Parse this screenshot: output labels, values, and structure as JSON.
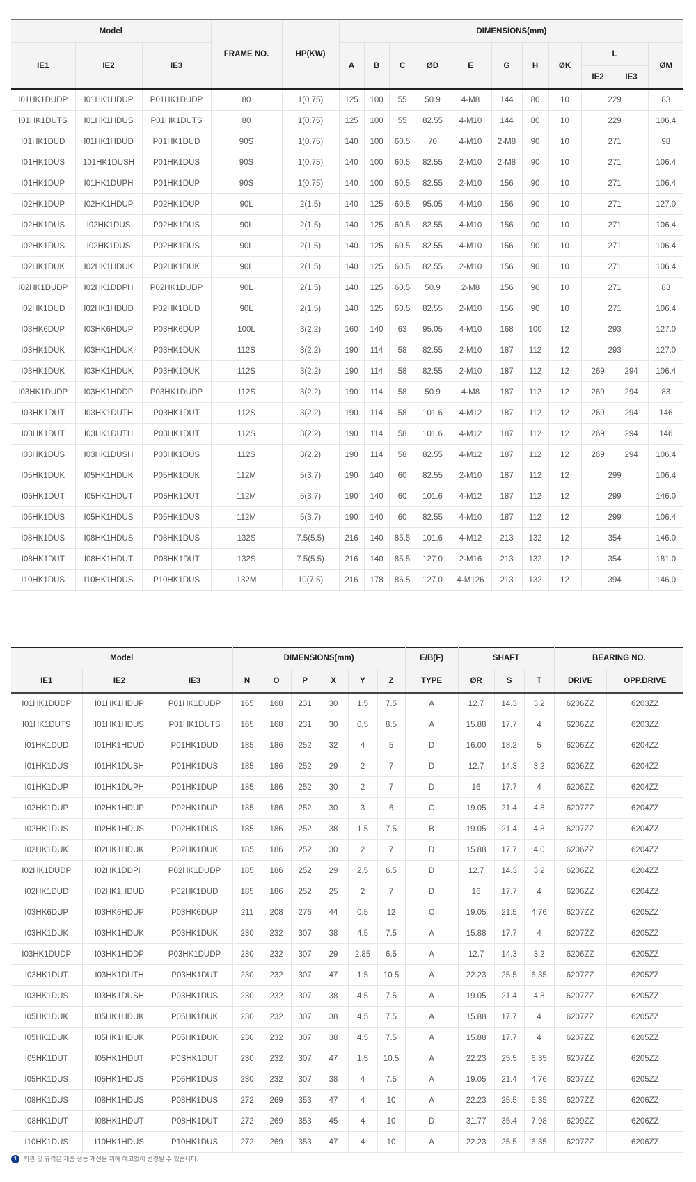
{
  "table1": {
    "headers": {
      "model": "Model",
      "ie1": "IE1",
      "ie2": "IE2",
      "ie3": "IE3",
      "frame": "FRAME NO.",
      "hp": "HP(KW)",
      "dimensions": "DIMENSIONS(mm)",
      "a": "A",
      "b": "B",
      "c": "C",
      "d": "ØD",
      "e": "E",
      "g": "G",
      "h": "H",
      "k": "ØK",
      "l": "L",
      "l_ie2": "IE2",
      "l_ie3": "IE3",
      "m": "ØM"
    },
    "rows": [
      [
        "I01HK1DUDP",
        "I01HK1HDUP",
        "P01HK1DUDP",
        "80",
        "1(0.75)",
        "125",
        "100",
        "55",
        "50.9",
        "4-M8",
        "144",
        "80",
        "10",
        "229",
        "83"
      ],
      [
        "I01HK1DUTS",
        "I01HK1HDUS",
        "P01HK1DUTS",
        "80",
        "1(0.75)",
        "125",
        "100",
        "55",
        "82.55",
        "4-M10",
        "144",
        "80",
        "10",
        "229",
        "106.4"
      ],
      [
        "I01HK1DUD",
        "I01HK1HDUD",
        "P01HK1DUD",
        "90S",
        "1(0.75)",
        "140",
        "100",
        "60.5",
        "70",
        "4-M10",
        "2-M8",
        "90",
        "10",
        "271",
        "98"
      ],
      [
        "I01HK1DUS",
        "101HK1DUSH",
        "P01HK1DUS",
        "90S",
        "1(0.75)",
        "140",
        "100",
        "60.5",
        "82.55",
        "2-M10",
        "2-M8",
        "90",
        "10",
        "271",
        "106.4"
      ],
      [
        "I01HK1DUP",
        "I01HK1DUPH",
        "P01HK1DUP",
        "90S",
        "1(0.75)",
        "140",
        "100",
        "60.5",
        "82.55",
        "2-M10",
        "156",
        "90",
        "10",
        "271",
        "106.4"
      ],
      [
        "I02HK1DUP",
        "I02HK1HDUP",
        "P02HK1DUP",
        "90L",
        "2(1.5)",
        "140",
        "125",
        "60.5",
        "95.05",
        "4-M10",
        "156",
        "90",
        "10",
        "271",
        "127.0"
      ],
      [
        "I02HK1DUS",
        "I02HK1DUS",
        "P02HK1DUS",
        "90L",
        "2(1.5)",
        "140",
        "125",
        "60.5",
        "82.55",
        "4-M10",
        "156",
        "90",
        "10",
        "271",
        "106.4"
      ],
      [
        "I02HK1DUS",
        "I02HK1DUS",
        "P02HK1DUS",
        "90L",
        "2(1.5)",
        "140",
        "125",
        "60.5",
        "82.55",
        "4-M10",
        "156",
        "90",
        "10",
        "271",
        "106.4"
      ],
      [
        "I02HK1DUK",
        "I02HK1HDUK",
        "P02HK1DUK",
        "90L",
        "2(1.5)",
        "140",
        "125",
        "60.5",
        "82.55",
        "2-M10",
        "156",
        "90",
        "10",
        "271",
        "106.4"
      ],
      [
        "I02HK1DUDP",
        "I02HK1DDPH",
        "P02HK1DUDP",
        "90L",
        "2(1.5)",
        "140",
        "125",
        "60.5",
        "50.9",
        "2-M8",
        "156",
        "90",
        "10",
        "271",
        "83"
      ],
      [
        "I02HK1DUD",
        "I02HK1HDUD",
        "P02HK1DUD",
        "90L",
        "2(1.5)",
        "140",
        "125",
        "60.5",
        "82.55",
        "2-M10",
        "156",
        "90",
        "10",
        "271",
        "106.4"
      ],
      [
        "I03HK6DUP",
        "I03HK6HDUP",
        "P03HK6DUP",
        "100L",
        "3(2.2)",
        "160",
        "140",
        "63",
        "95.05",
        "4-M10",
        "168",
        "100",
        "12",
        "293",
        "127.0"
      ],
      [
        "I03HK1DUK",
        "I03HK1HDUK",
        "P03HK1DUK",
        "112S",
        "3(2.2)",
        "190",
        "114",
        "58",
        "82.55",
        "2-M10",
        "187",
        "112",
        "12",
        "293",
        "127.0"
      ],
      [
        "I03HK1DUK",
        "I03HK1HDUK",
        "P03HK1DUK",
        "112S",
        "3(2.2)",
        "190",
        "114",
        "58",
        "82.55",
        "2-M10",
        "187",
        "112",
        "12",
        [
          "269",
          "294"
        ],
        "106.4"
      ],
      [
        "I03HK1DUDP",
        "I03HK1HDDP",
        "P03HK1DUDP",
        "112S",
        "3(2.2)",
        "190",
        "114",
        "58",
        "50.9",
        "4-M8",
        "187",
        "112",
        "12",
        [
          "269",
          "294"
        ],
        "83"
      ],
      [
        "I03HK1DUT",
        "I03HK1DUTH",
        "P03HK1DUT",
        "112S",
        "3(2.2)",
        "190",
        "114",
        "58",
        "101.6",
        "4-M12",
        "187",
        "112",
        "12",
        [
          "269",
          "294"
        ],
        "146"
      ],
      [
        "I03HK1DUT",
        "I03HK1DUTH",
        "P03HK1DUT",
        "112S",
        "3(2.2)",
        "190",
        "114",
        "58",
        "101.6",
        "4-M12",
        "187",
        "112",
        "12",
        [
          "269",
          "294"
        ],
        "146"
      ],
      [
        "I03HK1DUS",
        "I03HK1DUSH",
        "P03HK1DUS",
        "112S",
        "3(2.2)",
        "190",
        "114",
        "58",
        "82.55",
        "4-M12",
        "187",
        "112",
        "12",
        [
          "269",
          "294"
        ],
        "106.4"
      ],
      [
        "I05HK1DUK",
        "I05HK1HDUK",
        "P05HK1DUK",
        "112M",
        "5(3.7)",
        "190",
        "140",
        "60",
        "82.55",
        "2-M10",
        "187",
        "112",
        "12",
        "299",
        "106.4"
      ],
      [
        "I05HK1DUT",
        "I05HK1HDUT",
        "P05HK1DUT",
        "112M",
        "5(3.7)",
        "190",
        "140",
        "60",
        "101.6",
        "4-M12",
        "187",
        "112",
        "12",
        "299",
        "146.0"
      ],
      [
        "I05HK1DUS",
        "I05HK1HDUS",
        "P05HK1DUS",
        "112M",
        "5(3.7)",
        "190",
        "140",
        "60",
        "82.55",
        "4-M10",
        "187",
        "112",
        "12",
        "299",
        "106.4"
      ],
      [
        "I08HK1DUS",
        "I08HK1HDUS",
        "P08HK1DUS",
        "132S",
        "7.5(5.5)",
        "216",
        "140",
        "85.5",
        "101.6",
        "4-M12",
        "213",
        "132",
        "12",
        "354",
        "146.0"
      ],
      [
        "I08HK1DUT",
        "I08HK1HDUT",
        "P08HK1DUT",
        "132S",
        "7.5(5.5)",
        "216",
        "140",
        "85.5",
        "127.0",
        "2-M16",
        "213",
        "132",
        "12",
        "354",
        "181.0"
      ],
      [
        "I10HK1DUS",
        "I10HK1HDUS",
        "P10HK1DUS",
        "132M",
        "10(7.5)",
        "216",
        "178",
        "86.5",
        "127.0",
        "4-M126",
        "213",
        "132",
        "12",
        "394",
        "146.0"
      ]
    ]
  },
  "table2": {
    "headers": {
      "model": "Model",
      "dimensions": "DIMENSIONS(mm)",
      "eb": "E/B(F)",
      "shaft": "SHAFT",
      "bearing": "BEARING NO.",
      "ie1": "IE1",
      "ie2": "IE2",
      "ie3": "IE3",
      "n": "N",
      "o": "O",
      "p": "P",
      "x": "X",
      "y": "Y",
      "z": "Z",
      "type": "TYPE",
      "r": "ØR",
      "s": "S",
      "t": "T",
      "drive": "DRIVE",
      "opp": "OPP.DRIVE"
    },
    "rows": [
      [
        "I01HK1DUDP",
        "I01HK1HDUP",
        "P01HK1DUDP",
        "165",
        "168",
        "231",
        "30",
        "1.5",
        "7.5",
        "A",
        "12.7",
        "14.3",
        "3.2",
        "6206ZZ",
        "6203ZZ"
      ],
      [
        "I01HK1DUTS",
        "I01HK1HDUS",
        "P01HK1DUTS",
        "165",
        "168",
        "231",
        "30",
        "0.5",
        "8.5",
        "A",
        "15.88",
        "17.7",
        "4",
        "6206ZZ",
        "6203ZZ"
      ],
      [
        "I01HK1DUD",
        "I01HK1HDUD",
        "P01HK1DUD",
        "185",
        "186",
        "252",
        "32",
        "4",
        "5",
        "D",
        "16.00",
        "18.2",
        "5",
        "6206ZZ",
        "6204ZZ"
      ],
      [
        "I01HK1DUS",
        "I01HK1DUSH",
        "P01HK1DUS",
        "185",
        "186",
        "252",
        "29",
        "2",
        "7",
        "D",
        "12.7",
        "14.3",
        "3.2",
        "6206ZZ",
        "6204ZZ"
      ],
      [
        "I01HK1DUP",
        "I01HK1DUPH",
        "P01HK1DUP",
        "185",
        "186",
        "252",
        "30",
        "2",
        "7",
        "D",
        "16",
        "17.7",
        "4",
        "6206ZZ",
        "6204ZZ"
      ],
      [
        "I02HK1DUP",
        "I02HK1HDUP",
        "P02HK1DUP",
        "185",
        "186",
        "252",
        "30",
        "3",
        "6",
        "C",
        "19.05",
        "21.4",
        "4.8",
        "6207ZZ",
        "6204ZZ"
      ],
      [
        "I02HK1DUS",
        "I02HK1HDUS",
        "P02HK1DUS",
        "185",
        "186",
        "252",
        "38",
        "1.5",
        "7.5",
        "B",
        "19.05",
        "21.4",
        "4.8",
        "6207ZZ",
        "6204ZZ"
      ],
      [
        "I02HK1DUK",
        "I02HK1HDUK",
        "P02HK1DUK",
        "185",
        "186",
        "252",
        "30",
        "2",
        "7",
        "D",
        "15.88",
        "17.7",
        "4.0",
        "6206ZZ",
        "6204ZZ"
      ],
      [
        "I02HK1DUDP",
        "I02HK1DDPH",
        "P02HK1DUDP",
        "185",
        "186",
        "252",
        "29",
        "2.5",
        "6.5",
        "D",
        "12.7",
        "14.3",
        "3.2",
        "6206ZZ",
        "6204ZZ"
      ],
      [
        "I02HK1DUD",
        "I02HK1HDUD",
        "P02HK1DUD",
        "185",
        "186",
        "252",
        "25",
        "2",
        "7",
        "D",
        "16",
        "17.7",
        "4",
        "6206ZZ",
        "6204ZZ"
      ],
      [
        "I03HK6DUP",
        "I03HK6HDUP",
        "P03HK6DUP",
        "211",
        "208",
        "276",
        "44",
        "0.5",
        "12",
        "C",
        "19.05",
        "21.5",
        "4.76",
        "6207ZZ",
        "6205ZZ"
      ],
      [
        "I03HK1DUK",
        "I03HK1HDUK",
        "P03HK1DUK",
        "230",
        "232",
        "307",
        "38",
        "4.5",
        "7.5",
        "A",
        "15.88",
        "17.7",
        "4",
        "6207ZZ",
        "6205ZZ"
      ],
      [
        "I03HK1DUDP",
        "I03HK1HDDP",
        "P03HK1DUDP",
        "230",
        "232",
        "307",
        "29",
        "2.85",
        "6.5",
        "A",
        "12.7",
        "14.3",
        "3.2",
        "6206ZZ",
        "6205ZZ"
      ],
      [
        "I03HK1DUT",
        "I03HK1DUTH",
        "P03HK1DUT",
        "230",
        "232",
        "307",
        "47",
        "1.5",
        "10.5",
        "A",
        "22.23",
        "25.5",
        "6.35",
        "6207ZZ",
        "6205ZZ"
      ],
      [
        "I03HK1DUS",
        "I03HK1DUSH",
        "P03HK1DUS",
        "230",
        "232",
        "307",
        "38",
        "4.5",
        "7.5",
        "A",
        "19.05",
        "21.4",
        "4.8",
        "6207ZZ",
        "6205ZZ"
      ],
      [
        "I05HK1DUK",
        "I05HK1HDUK",
        "P05HK1DUK",
        "230",
        "232",
        "307",
        "38",
        "4.5",
        "7.5",
        "A",
        "15.88",
        "17.7",
        "4",
        "6207ZZ",
        "6205ZZ"
      ],
      [
        "I05HK1DUK",
        "I05HK1HDUK",
        "P05HK1DUK",
        "230",
        "232",
        "307",
        "38",
        "4.5",
        "7.5",
        "A",
        "15.88",
        "17.7",
        "4",
        "6207ZZ",
        "6205ZZ"
      ],
      [
        "I05HK1DUT",
        "I05HK1HDUT",
        "P0SHK1DUT",
        "230",
        "232",
        "307",
        "47",
        "1.5",
        "10.5",
        "A",
        "22.23",
        "25.5",
        "6.35",
        "6207ZZ",
        "6205ZZ"
      ],
      [
        "I05HK1DUS",
        "I05HK1HDUS",
        "P05HK1DUS",
        "230",
        "232",
        "307",
        "38",
        "4",
        "7.5",
        "A",
        "19.05",
        "21.4",
        "4.76",
        "6207ZZ",
        "6205ZZ"
      ],
      [
        "I08HK1DUS",
        "I08HK1HDUS",
        "P08HK1DUS",
        "272",
        "269",
        "353",
        "47",
        "4",
        "10",
        "A",
        "22.23",
        "25.5",
        "6.35",
        "6207ZZ",
        "6206ZZ"
      ],
      [
        "I08HK1DUT",
        "I08HK1HDUT",
        "P08HK1DUT",
        "272",
        "269",
        "353",
        "45",
        "4",
        "10",
        "D",
        "31.77",
        "35.4",
        "7.98",
        "6209ZZ",
        "6206ZZ"
      ],
      [
        "I10HK1DUS",
        "I10HK1HDUS",
        "P10HK1DUS",
        "272",
        "269",
        "353",
        "47",
        "4",
        "10",
        "A",
        "22.23",
        "25.5",
        "6.35",
        "6207ZZ",
        "6206ZZ"
      ]
    ]
  },
  "footnote": {
    "icon": "number-one-badge-icon",
    "number": "1",
    "text": "외관 및 규격은 제품 성능 개선을 위해 예고없이 변경될 수 있습니다.",
    "icon_color": "#173a8c"
  }
}
